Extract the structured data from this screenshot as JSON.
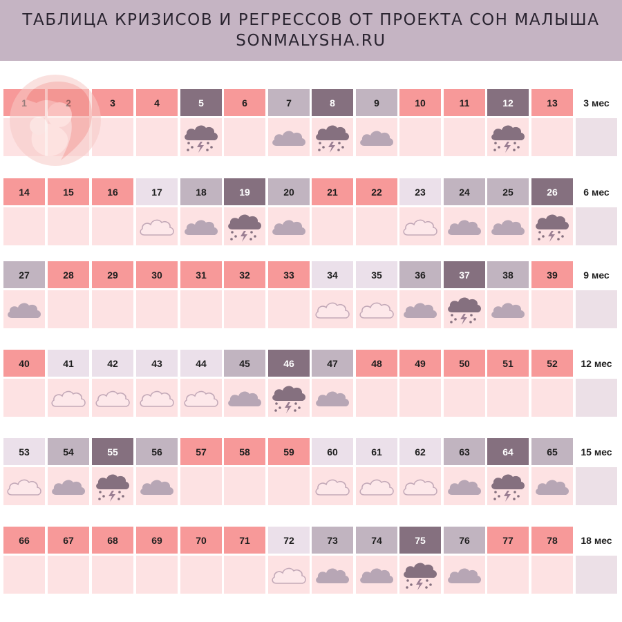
{
  "header": {
    "title": "ТАБЛИЦА КРИЗИСОВ И РЕГРЕССОВ ОТ ПРОЕКТА СОН МАЛЫША",
    "subtitle": "SONMALYSHA.RU"
  },
  "colors": {
    "header_bg": "#c5b4c3",
    "calm": "#f79999",
    "light": "#ebe0ea",
    "medium": "#c1b4c0",
    "dark": "#85707f",
    "weather_bg": "#fde2e3",
    "label_box": "#ece0e7"
  },
  "legend_meaning": {
    "calm": "no-cloud",
    "light": "cloud-outline-icon",
    "medium": "cloud-icon",
    "dark": "storm-cloud-icon"
  },
  "rows": [
    {
      "label": "3 мес",
      "weeks": [
        {
          "n": "1",
          "s": "calm"
        },
        {
          "n": "2",
          "s": "calm"
        },
        {
          "n": "3",
          "s": "calm"
        },
        {
          "n": "4",
          "s": "calm"
        },
        {
          "n": "5",
          "s": "dark"
        },
        {
          "n": "6",
          "s": "calm"
        },
        {
          "n": "7",
          "s": "medium"
        },
        {
          "n": "8",
          "s": "dark"
        },
        {
          "n": "9",
          "s": "medium"
        },
        {
          "n": "10",
          "s": "calm"
        },
        {
          "n": "11",
          "s": "calm"
        },
        {
          "n": "12",
          "s": "dark"
        },
        {
          "n": "13",
          "s": "calm"
        }
      ]
    },
    {
      "label": "6 мес",
      "weeks": [
        {
          "n": "14",
          "s": "calm"
        },
        {
          "n": "15",
          "s": "calm"
        },
        {
          "n": "16",
          "s": "calm"
        },
        {
          "n": "17",
          "s": "light"
        },
        {
          "n": "18",
          "s": "medium"
        },
        {
          "n": "19",
          "s": "dark"
        },
        {
          "n": "20",
          "s": "medium"
        },
        {
          "n": "21",
          "s": "calm"
        },
        {
          "n": "22",
          "s": "calm"
        },
        {
          "n": "23",
          "s": "light"
        },
        {
          "n": "24",
          "s": "medium"
        },
        {
          "n": "25",
          "s": "medium"
        },
        {
          "n": "26",
          "s": "dark"
        }
      ]
    },
    {
      "label": "9 мес",
      "weeks": [
        {
          "n": "27",
          "s": "medium"
        },
        {
          "n": "28",
          "s": "calm"
        },
        {
          "n": "29",
          "s": "calm"
        },
        {
          "n": "30",
          "s": "calm"
        },
        {
          "n": "31",
          "s": "calm"
        },
        {
          "n": "32",
          "s": "calm"
        },
        {
          "n": "33",
          "s": "calm"
        },
        {
          "n": "34",
          "s": "light"
        },
        {
          "n": "35",
          "s": "light"
        },
        {
          "n": "36",
          "s": "medium"
        },
        {
          "n": "37",
          "s": "dark"
        },
        {
          "n": "38",
          "s": "medium"
        },
        {
          "n": "39",
          "s": "calm"
        }
      ]
    },
    {
      "label": "12 мес",
      "weeks": [
        {
          "n": "40",
          "s": "calm"
        },
        {
          "n": "41",
          "s": "light"
        },
        {
          "n": "42",
          "s": "light"
        },
        {
          "n": "43",
          "s": "light"
        },
        {
          "n": "44",
          "s": "light"
        },
        {
          "n": "45",
          "s": "medium"
        },
        {
          "n": "46",
          "s": "dark"
        },
        {
          "n": "47",
          "s": "medium"
        },
        {
          "n": "48",
          "s": "calm"
        },
        {
          "n": "49",
          "s": "calm"
        },
        {
          "n": "50",
          "s": "calm"
        },
        {
          "n": "51",
          "s": "calm"
        },
        {
          "n": "52",
          "s": "calm"
        }
      ]
    },
    {
      "label": "15 мес",
      "weeks": [
        {
          "n": "53",
          "s": "light"
        },
        {
          "n": "54",
          "s": "medium"
        },
        {
          "n": "55",
          "s": "dark"
        },
        {
          "n": "56",
          "s": "medium"
        },
        {
          "n": "57",
          "s": "calm"
        },
        {
          "n": "58",
          "s": "calm"
        },
        {
          "n": "59",
          "s": "calm"
        },
        {
          "n": "60",
          "s": "light"
        },
        {
          "n": "61",
          "s": "light"
        },
        {
          "n": "62",
          "s": "light"
        },
        {
          "n": "63",
          "s": "medium"
        },
        {
          "n": "64",
          "s": "dark"
        },
        {
          "n": "65",
          "s": "medium"
        }
      ]
    },
    {
      "label": "18 мес",
      "weeks": [
        {
          "n": "66",
          "s": "calm"
        },
        {
          "n": "67",
          "s": "calm"
        },
        {
          "n": "68",
          "s": "calm"
        },
        {
          "n": "69",
          "s": "calm"
        },
        {
          "n": "70",
          "s": "calm"
        },
        {
          "n": "71",
          "s": "calm"
        },
        {
          "n": "72",
          "s": "light"
        },
        {
          "n": "73",
          "s": "medium"
        },
        {
          "n": "74",
          "s": "medium"
        },
        {
          "n": "75",
          "s": "dark"
        },
        {
          "n": "76",
          "s": "medium"
        },
        {
          "n": "77",
          "s": "calm"
        },
        {
          "n": "78",
          "s": "calm"
        }
      ]
    }
  ]
}
